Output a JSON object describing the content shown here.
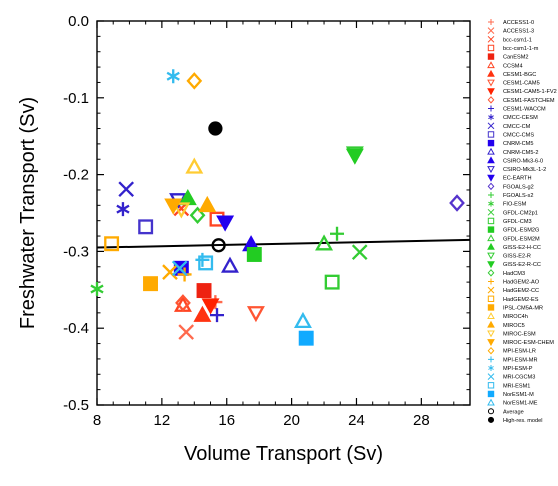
{
  "chart_data": {
    "type": "scatter",
    "xlabel": "Volume Transport (Sv)",
    "ylabel": "Freshwater Transport (Sv)",
    "xlim": [
      8,
      31
    ],
    "ylim": [
      -0.5,
      0.0
    ],
    "xticks": [
      8,
      12,
      16,
      20,
      24,
      28
    ],
    "yticks": [
      0.0,
      -0.1,
      -0.2,
      -0.3,
      -0.4,
      -0.5
    ],
    "xtick_labels": [
      "8",
      "12",
      "16",
      "20",
      "24",
      "28"
    ],
    "ytick_labels": [
      "0.0",
      "-0.1",
      "-0.2",
      "-0.3",
      "-0.4",
      "-0.5"
    ],
    "legend_position": "right, outside plot",
    "regression_line": {
      "x": [
        8,
        31
      ],
      "y": [
        -0.295,
        -0.285
      ]
    },
    "series": [
      {
        "name": "ACCESS1-0",
        "marker": "plus",
        "color": "#ff6a4d",
        "filled": false,
        "points": [
          [
            15.3,
            -0.366
          ]
        ]
      },
      {
        "name": "ACCESS1-3",
        "marker": "cross",
        "color": "#ff6a4d",
        "filled": false,
        "points": [
          [
            13.5,
            -0.405
          ]
        ]
      },
      {
        "name": "bcc-csm1-1",
        "marker": "cross",
        "color": "#ff4422",
        "filled": false,
        "points": [
          [
            13.2,
            -0.244
          ]
        ]
      },
      {
        "name": "bcc-csm1-1-m",
        "marker": "square",
        "color": "#ff4422",
        "filled": false,
        "points": [
          [
            15.4,
            -0.258
          ]
        ]
      },
      {
        "name": "CanESM2",
        "marker": "square",
        "color": "#ee2211",
        "filled": true,
        "points": [
          [
            14.6,
            -0.351
          ]
        ]
      },
      {
        "name": "CCSM4",
        "marker": "triangle",
        "color": "#ff4422",
        "filled": false,
        "points": [
          [
            13.3,
            -0.37
          ]
        ]
      },
      {
        "name": "CESM1-BGC",
        "marker": "triangle",
        "color": "#ff3311",
        "filled": true,
        "points": [
          [
            14.5,
            -0.383
          ]
        ]
      },
      {
        "name": "CESM1-CAM5",
        "marker": "triangle-down",
        "color": "#ff5533",
        "filled": false,
        "points": [
          [
            17.8,
            -0.38
          ]
        ]
      },
      {
        "name": "CESM1-CAM5-1-FV2",
        "marker": "triangle-down",
        "color": "#ff2200",
        "filled": true,
        "points": [
          [
            15.0,
            -0.37
          ]
        ]
      },
      {
        "name": "CESM1-FASTCHEM",
        "marker": "diamond",
        "color": "#ff5533",
        "filled": false,
        "points": [
          [
            13.3,
            -0.367
          ]
        ]
      },
      {
        "name": "CESM1-WACCM",
        "marker": "plus",
        "color": "#3322cc",
        "filled": false,
        "points": [
          [
            15.4,
            -0.383
          ]
        ]
      },
      {
        "name": "CMCC-CESM",
        "marker": "asterisk",
        "color": "#3322cc",
        "filled": false,
        "points": [
          [
            9.6,
            -0.245
          ]
        ]
      },
      {
        "name": "CMCC-CM",
        "marker": "cross",
        "color": "#3322cc",
        "filled": false,
        "points": [
          [
            9.8,
            -0.219
          ]
        ]
      },
      {
        "name": "CMCC-CMS",
        "marker": "square",
        "color": "#4433cc",
        "filled": false,
        "points": [
          [
            11.0,
            -0.268
          ]
        ]
      },
      {
        "name": "CNRM-CM5",
        "marker": "square",
        "color": "#2200ee",
        "filled": true,
        "points": [
          [
            13.2,
            -0.322
          ]
        ]
      },
      {
        "name": "CNRM-CM5-2",
        "marker": "triangle",
        "color": "#3322cc",
        "filled": false,
        "points": [
          [
            16.2,
            -0.319
          ]
        ]
      },
      {
        "name": "CSIRO-Mk3-6-0",
        "marker": "triangle",
        "color": "#2200ee",
        "filled": true,
        "points": [
          [
            17.5,
            -0.291
          ]
        ]
      },
      {
        "name": "CSIRO-Mk3L-1-2",
        "marker": "triangle-down",
        "color": "#3322cc",
        "filled": false,
        "points": [
          [
            13.0,
            -0.233
          ]
        ]
      },
      {
        "name": "EC-EARTH",
        "marker": "triangle-down",
        "color": "#2200ee",
        "filled": true,
        "points": [
          [
            15.9,
            -0.262
          ]
        ]
      },
      {
        "name": "FGOALS-g2",
        "marker": "diamond",
        "color": "#5533cc",
        "filled": false,
        "points": [
          [
            30.2,
            -0.237
          ]
        ]
      },
      {
        "name": "FGOALS-s2",
        "marker": "plus",
        "color": "#33cc33",
        "filled": false,
        "points": [
          [
            22.8,
            -0.277
          ]
        ]
      },
      {
        "name": "FIO-ESM",
        "marker": "asterisk",
        "color": "#33cc33",
        "filled": false,
        "points": [
          [
            8.0,
            -0.349
          ]
        ]
      },
      {
        "name": "GFDL-CM2p1",
        "marker": "cross",
        "color": "#33cc33",
        "filled": false,
        "points": [
          [
            24.2,
            -0.301
          ]
        ]
      },
      {
        "name": "GFDL-CM3",
        "marker": "square",
        "color": "#33cc33",
        "filled": false,
        "points": [
          [
            22.5,
            -0.34
          ]
        ]
      },
      {
        "name": "GFDL-ESM2G",
        "marker": "square",
        "color": "#22cc22",
        "filled": true,
        "points": [
          [
            17.7,
            -0.304
          ]
        ]
      },
      {
        "name": "GFDL-ESM2M",
        "marker": "triangle",
        "color": "#33cc33",
        "filled": false,
        "points": [
          [
            22.0,
            -0.29
          ]
        ]
      },
      {
        "name": "GISS-E2-H-CC",
        "marker": "triangle",
        "color": "#22cc22",
        "filled": true,
        "points": [
          [
            13.6,
            -0.231
          ]
        ]
      },
      {
        "name": "GISS-E2-R",
        "marker": "triangle-down",
        "color": "#33cc33",
        "filled": false,
        "points": [
          [
            23.9,
            -0.172
          ]
        ]
      },
      {
        "name": "GISS-E2-R-CC",
        "marker": "triangle-down",
        "color": "#22cc22",
        "filled": true,
        "points": [
          [
            23.9,
            -0.175
          ]
        ]
      },
      {
        "name": "HadCM3",
        "marker": "diamond",
        "color": "#33cc33",
        "filled": false,
        "points": [
          [
            14.2,
            -0.253
          ]
        ]
      },
      {
        "name": "HadGEM2-AO",
        "marker": "plus",
        "color": "#ffaa00",
        "filled": false,
        "points": [
          [
            13.4,
            -0.33
          ]
        ]
      },
      {
        "name": "HadGEM2-CC",
        "marker": "cross",
        "color": "#ffaa00",
        "filled": false,
        "points": [
          [
            12.5,
            -0.327
          ]
        ]
      },
      {
        "name": "HadGEM2-ES",
        "marker": "square",
        "color": "#ffaa00",
        "filled": false,
        "points": [
          [
            8.9,
            -0.29
          ]
        ]
      },
      {
        "name": "IPSL-CM5A-MR",
        "marker": "square",
        "color": "#ffaa00",
        "filled": true,
        "points": [
          [
            11.3,
            -0.342
          ]
        ]
      },
      {
        "name": "MIROC4h",
        "marker": "triangle",
        "color": "#ffcc33",
        "filled": false,
        "points": [
          [
            14.0,
            -0.19
          ]
        ]
      },
      {
        "name": "MIROC5",
        "marker": "triangle",
        "color": "#ffaa00",
        "filled": true,
        "points": [
          [
            14.8,
            -0.24
          ]
        ]
      },
      {
        "name": "MIROC-ESM",
        "marker": "triangle-down",
        "color": "#ffcc33",
        "filled": false,
        "points": [
          [
            13.2,
            -0.245
          ]
        ]
      },
      {
        "name": "MIROC-ESM-CHEM",
        "marker": "triangle-down",
        "color": "#ffaa00",
        "filled": true,
        "points": [
          [
            12.7,
            -0.24
          ]
        ]
      },
      {
        "name": "MPI-ESM-LR",
        "marker": "diamond",
        "color": "#ffaa00",
        "filled": false,
        "points": [
          [
            14.0,
            -0.078
          ]
        ]
      },
      {
        "name": "MPI-ESM-MR",
        "marker": "plus",
        "color": "#33bbee",
        "filled": false,
        "points": [
          [
            14.5,
            -0.311
          ]
        ]
      },
      {
        "name": "MPI-ESM-P",
        "marker": "asterisk",
        "color": "#33bbee",
        "filled": false,
        "points": [
          [
            12.7,
            -0.072
          ]
        ]
      },
      {
        "name": "MRI-CGCM3",
        "marker": "cross",
        "color": "#33bbee",
        "filled": false,
        "points": [
          [
            13.1,
            -0.322
          ]
        ]
      },
      {
        "name": "MRI-ESM1",
        "marker": "square",
        "color": "#33bbee",
        "filled": false,
        "points": [
          [
            14.7,
            -0.315
          ]
        ]
      },
      {
        "name": "NorESM1-M",
        "marker": "square",
        "color": "#11aaff",
        "filled": true,
        "points": [
          [
            20.9,
            -0.413
          ]
        ]
      },
      {
        "name": "NorESM1-ME",
        "marker": "triangle",
        "color": "#33bbee",
        "filled": false,
        "points": [
          [
            20.7,
            -0.391
          ]
        ]
      },
      {
        "name": "Average",
        "marker": "circle",
        "color": "#000000",
        "filled": false,
        "points": [
          [
            15.5,
            -0.292
          ]
        ]
      },
      {
        "name": "High-res. model",
        "marker": "circle",
        "color": "#000000",
        "filled": true,
        "points": [
          [
            15.3,
            -0.14
          ]
        ]
      }
    ]
  }
}
